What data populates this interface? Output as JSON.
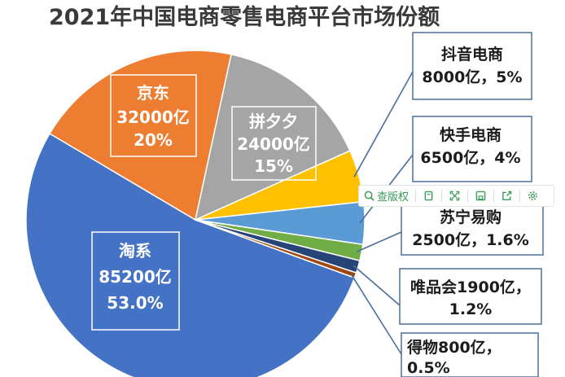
{
  "chart_data": {
    "type": "pie",
    "title": "2021年中国电商零售电商平台市场份额",
    "slices": [
      {
        "name": "淘系",
        "value": 85200,
        "percent": "53.0%",
        "value_text": "85200亿",
        "color": "#4472C4"
      },
      {
        "name": "京东",
        "value": 32000,
        "percent": "20%",
        "value_text": "32000亿",
        "color": "#ED7D31"
      },
      {
        "name": "拼夕夕",
        "value": 24000,
        "percent": "15%",
        "value_text": "24000亿",
        "color": "#A5A5A5"
      },
      {
        "name": "抖音电商",
        "value": 8000,
        "percent": "5%",
        "value_text": "8000亿，5%",
        "color": "#FFC000"
      },
      {
        "name": "快手电商",
        "value": 6500,
        "percent": "4%",
        "value_text": "6500亿，4%",
        "color": "#5B9BD5"
      },
      {
        "name": "苏宁易购",
        "value": 2500,
        "percent": "1.6%",
        "value_text": "2500亿，1.6%",
        "color": "#70AD47"
      },
      {
        "name": "唯品会",
        "value": 1900,
        "percent": "1.2%",
        "value_text": "唯品会1900亿，",
        "value_text2": "1.2%",
        "color": "#264478"
      },
      {
        "name": "得物",
        "value": 800,
        "percent": "0.5%",
        "value_text": "得物800亿，",
        "value_text2": "0.5%",
        "color": "#9E480E"
      }
    ]
  },
  "toolbar": {
    "view_label": "查版权",
    "icons": [
      "magnifier-icon",
      "copy-icon",
      "expand-icon",
      "save-icon",
      "share-icon",
      "gear-icon"
    ]
  }
}
